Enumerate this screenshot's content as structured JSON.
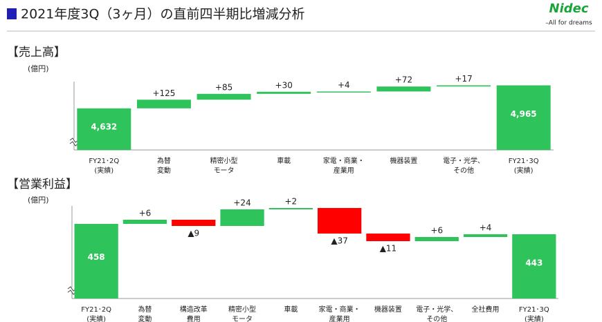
{
  "header": {
    "title": "2021年度3Q（3ヶ月）の直前四半期比増減分析",
    "logo": "Nidec",
    "tagline": "–All for dreams"
  },
  "chart_data": [
    {
      "type": "waterfall",
      "title": "【売上高】",
      "y_label": "(億円)",
      "categories": [
        [
          "FY21･2Q",
          "(実績)"
        ],
        [
          "為替",
          "変動"
        ],
        [
          "精密小型",
          "モータ"
        ],
        [
          "車載"
        ],
        [
          "家電・商業・",
          "産業用"
        ],
        [
          "機器装置"
        ],
        [
          "電子・光学、",
          "その他"
        ],
        [
          "FY21･3Q",
          "(実績)"
        ]
      ],
      "measures": [
        "absolute",
        "relative",
        "relative",
        "relative",
        "relative",
        "relative",
        "relative",
        "absolute"
      ],
      "values": [
        4632,
        125,
        85,
        30,
        4,
        72,
        17,
        4965
      ],
      "value_labels": [
        "4,632",
        "+125",
        "+85",
        "+30",
        "+4",
        "+72",
        "+17",
        "4,965"
      ],
      "colors": {
        "total": "#2fc35b",
        "increase": "#2fc35b",
        "decrease": "#ff0000"
      },
      "ylim": [
        4030,
        5100
      ],
      "axis_break": true
    },
    {
      "type": "waterfall",
      "title": "【営業利益】",
      "y_label": "(億円)",
      "categories": [
        [
          "FY21･2Q",
          "(実績)"
        ],
        [
          "為替",
          "変動"
        ],
        [
          "構造改革",
          "費用"
        ],
        [
          "精密小型",
          "モータ"
        ],
        [
          "車載"
        ],
        [
          "家電・商業・",
          "産業用"
        ],
        [
          "機器装置"
        ],
        [
          "電子・光学、",
          "その他"
        ],
        [
          "全社費用"
        ],
        [
          "FY21･3Q",
          "(実績)"
        ]
      ],
      "measures": [
        "absolute",
        "relative",
        "relative",
        "relative",
        "relative",
        "relative",
        "relative",
        "relative",
        "relative",
        "absolute"
      ],
      "values": [
        458,
        6,
        -9,
        24,
        2,
        -37,
        -11,
        6,
        4,
        443
      ],
      "value_labels": [
        "458",
        "+6",
        "▲9",
        "+24",
        "+2",
        "▲37",
        "▲11",
        "+6",
        "+4",
        "443"
      ],
      "colors": {
        "total": "#2fc35b",
        "increase": "#2fc35b",
        "decrease": "#ff0000"
      },
      "ylim": [
        350,
        492
      ],
      "axis_break": true
    }
  ]
}
